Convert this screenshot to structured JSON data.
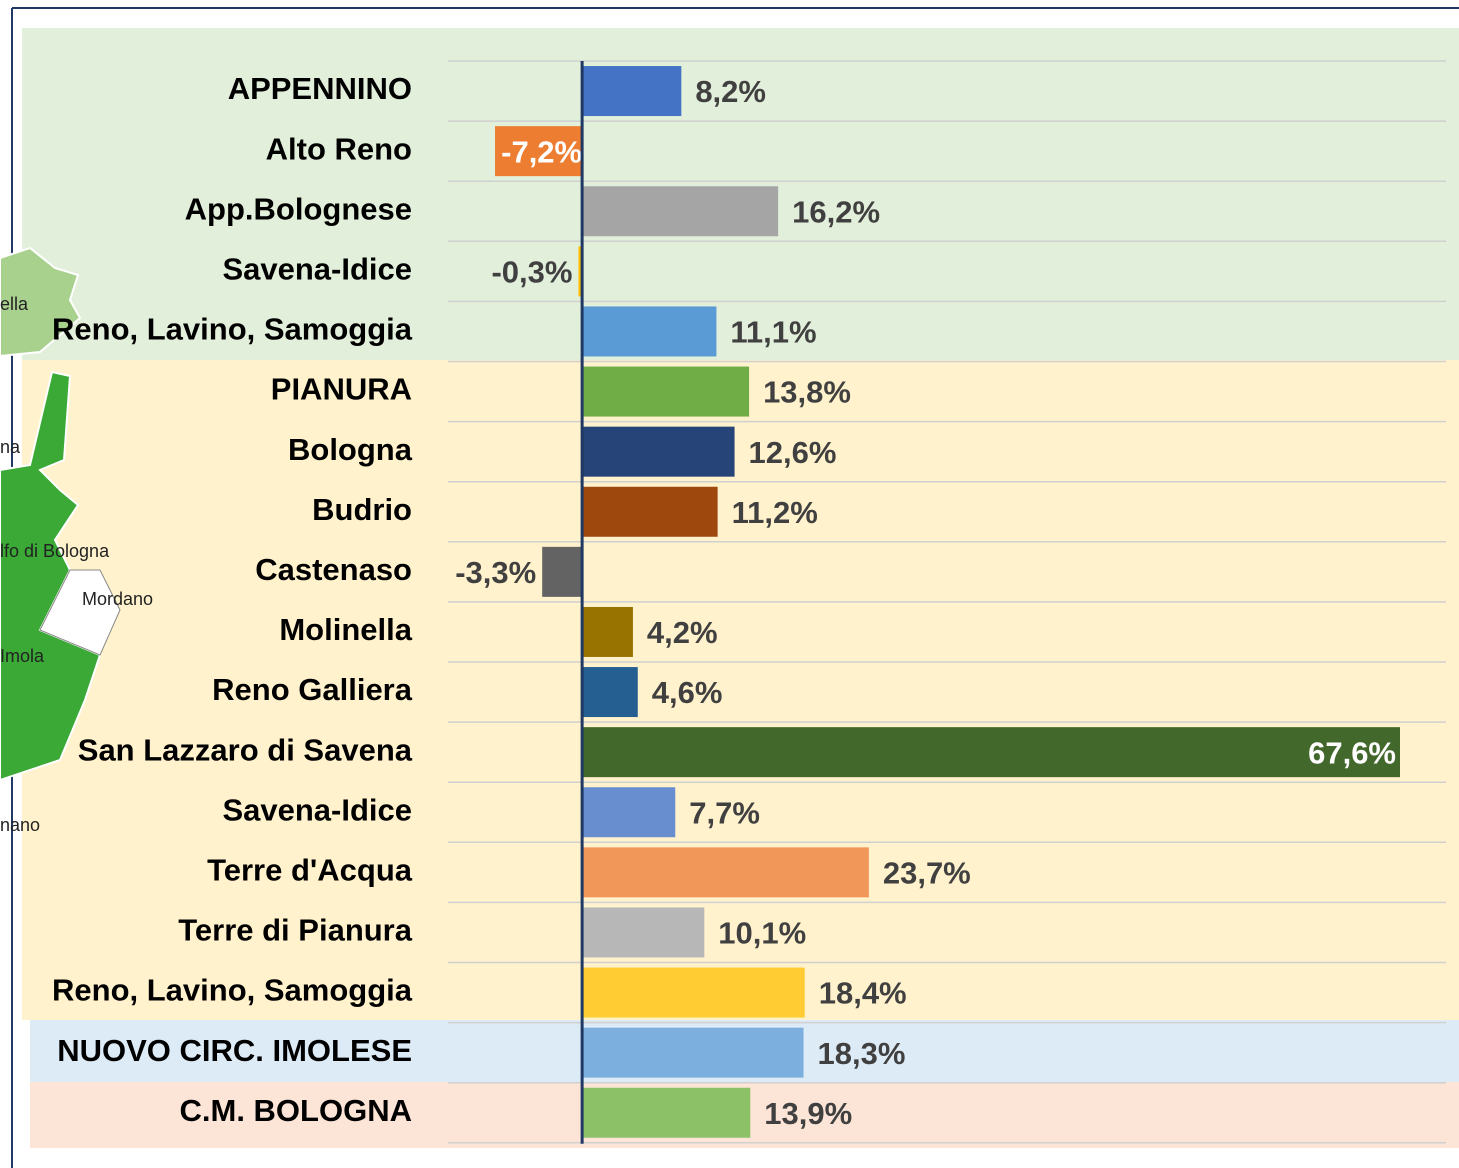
{
  "chart_data": {
    "type": "bar",
    "orientation": "horizontal",
    "categories": [
      "APPENNINO",
      "Alto Reno",
      "App.Bolognese",
      "Savena-Idice",
      "Reno, Lavino, Samoggia",
      "PIANURA",
      "Bologna",
      "Budrio",
      "Castenaso",
      "Molinella",
      "Reno Galliera",
      "San Lazzaro di Savena",
      "Savena-Idice",
      "Terre d'Acqua",
      "Terre di Pianura",
      "Reno, Lavino, Samoggia",
      "NUOVO CIRC. IMOLESE",
      "C.M. BOLOGNA"
    ],
    "values": [
      8.2,
      -7.2,
      16.2,
      -0.3,
      11.1,
      13.8,
      12.6,
      11.2,
      -3.3,
      4.2,
      4.6,
      67.6,
      7.7,
      23.7,
      10.1,
      18.4,
      18.3,
      13.9
    ],
    "value_labels": [
      "8,2%",
      "-7,2%",
      "16,2%",
      "-0,3%",
      "11,1%",
      "13,8%",
      "12,6%",
      "11,2%",
      "-3,3%",
      "4,2%",
      "4,6%",
      "67,6%",
      "7,7%",
      "23,7%",
      "10,1%",
      "18,4%",
      "18,3%",
      "13,9%"
    ],
    "colors": [
      "#4472c4",
      "#ed7d31",
      "#a5a5a5",
      "#ffc000",
      "#5b9bd5",
      "#70ad47",
      "#264478",
      "#9e480e",
      "#636363",
      "#997300",
      "#255e91",
      "#43682b",
      "#698ed0",
      "#f1975a",
      "#b7b7b7",
      "#ffcd33",
      "#7cafdd",
      "#8cc168"
    ],
    "map_labels": [
      "ella",
      "na",
      "lfo di Bologna",
      "Mordano",
      "Imola",
      "nano"
    ]
  }
}
